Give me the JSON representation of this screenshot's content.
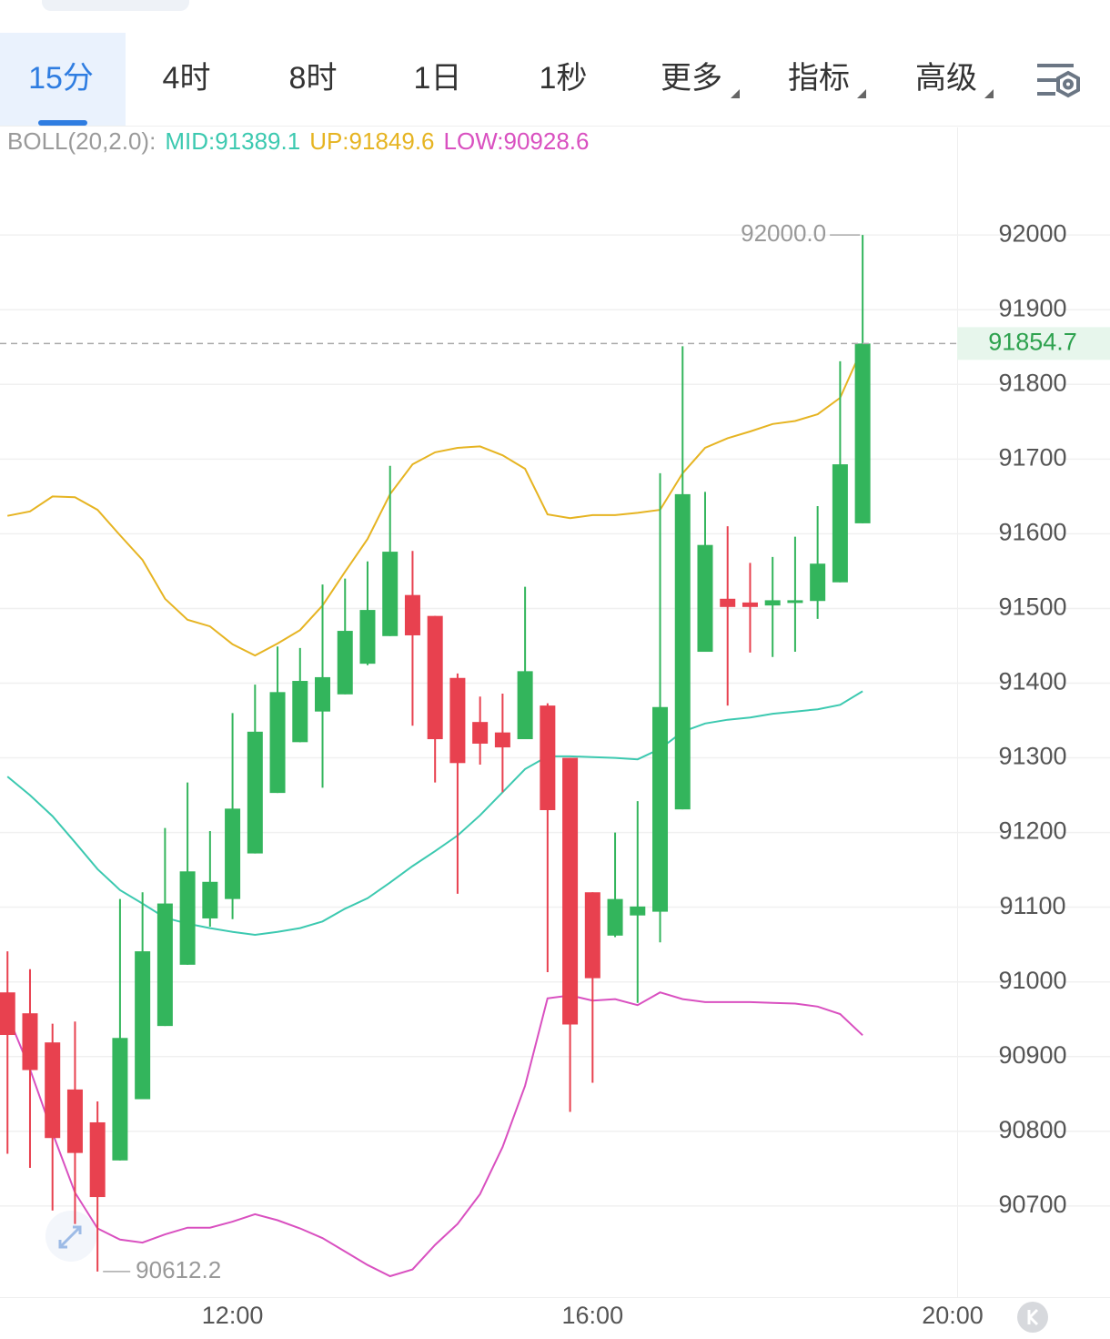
{
  "tabs": [
    "15分",
    "4时",
    "8时",
    "1日",
    "1秒",
    "更多",
    "指标",
    "高级"
  ],
  "active_tab": 0,
  "chart_data": {
    "type": "candlestick",
    "x": [
      "09:30",
      "09:45",
      "10:00",
      "10:15",
      "10:30",
      "10:45",
      "11:00",
      "11:15",
      "11:30",
      "11:45",
      "12:00",
      "12:15",
      "12:30",
      "12:45",
      "13:00",
      "13:15",
      "13:30",
      "13:45",
      "14:00",
      "14:15",
      "14:30",
      "14:45",
      "15:00",
      "15:15",
      "15:30",
      "15:45",
      "16:00",
      "16:15",
      "16:30",
      "16:45",
      "17:00",
      "17:15",
      "17:30",
      "17:45",
      "18:00",
      "18:15",
      "18:30",
      "18:45",
      "19:00"
    ],
    "open": [
      90986,
      90958,
      90919,
      90856,
      90812,
      90761,
      90843,
      90941,
      91023,
      91085,
      91111,
      91172,
      91253,
      91321,
      91362,
      91385,
      91426,
      91463,
      91518,
      91490,
      91407,
      91348,
      91334,
      91325,
      91370,
      91300,
      91120,
      91062,
      91089,
      91094,
      91231,
      91442,
      91513,
      91508,
      91504,
      91508,
      91510,
      91535,
      91614
    ],
    "high": [
      91041,
      91017,
      90944,
      90947,
      90840,
      91111,
      91120,
      91206,
      91267,
      91202,
      91360,
      91398,
      91449,
      91447,
      91532,
      91540,
      91563,
      91691,
      91577,
      91490,
      91413,
      91382,
      91386,
      91529,
      91373,
      91300,
      91120,
      91200,
      91242,
      91681,
      91851,
      91656,
      91610,
      91561,
      91569,
      91596,
      91637,
      91831,
      92000
    ],
    "low": [
      90770,
      90751,
      90694,
      90676,
      90612.2,
      90761,
      90843,
      90941,
      91023,
      91074,
      91084,
      91172,
      91253,
      91321,
      91260,
      91385,
      91424,
      91463,
      91343,
      91267,
      91118,
      91291,
      91254,
      91325,
      91013,
      90826,
      90865,
      91060,
      90972,
      91053,
      91231,
      91442,
      91370,
      91441,
      91435,
      91442,
      91486,
      91535,
      91614
    ],
    "close": [
      90929,
      90882,
      90791,
      90771,
      90712,
      90925,
      91041,
      91105,
      91148,
      91134,
      91232,
      91335,
      91388,
      91403,
      91408,
      91470,
      91498,
      91576,
      91464,
      91325,
      91293,
      91319,
      91314,
      91416,
      91230,
      90943,
      91005,
      91111,
      91101,
      91368,
      91653,
      91585,
      91502,
      91502,
      91511,
      91511,
      91560,
      91693,
      91854.7
    ],
    "up_color": "#33b55c",
    "down_color": "#e8414f",
    "xlim": [
      "09:25",
      "20:03"
    ],
    "xticks": [
      "12:00",
      "16:00",
      "20:00"
    ],
    "ylim": [
      90578,
      92144
    ],
    "yticks": [
      90700,
      90800,
      90900,
      91000,
      91100,
      91200,
      91300,
      91400,
      91500,
      91600,
      91700,
      91800,
      91900,
      92000
    ],
    "grid": true,
    "indicator": {
      "label": "BOLL(20,2.0):",
      "lines": [
        {
          "name": "MID:91389.1",
          "color": "#3cc9b0",
          "values": [
            91275,
            91250,
            91222,
            91187,
            91151,
            91123,
            91105,
            91086,
            91078,
            91072,
            91067,
            91063,
            91067,
            91072,
            91081,
            91098,
            91112,
            91133,
            91155,
            91175,
            91196,
            91223,
            91254,
            91285,
            91302,
            91302,
            91301,
            91300,
            91298,
            91312,
            91335,
            91346,
            91351,
            91354,
            91359,
            91362,
            91365,
            91371,
            91389.1
          ]
        },
        {
          "name": "UP:91849.6",
          "color": "#e6b422",
          "values": [
            91624,
            91630,
            91650,
            91649,
            91632,
            91598,
            91565,
            91513,
            91485,
            91476,
            91452,
            91437,
            91453,
            91471,
            91504,
            91549,
            91593,
            91653,
            91693,
            91709,
            91715,
            91717,
            91705,
            91687,
            91626,
            91621,
            91625,
            91625,
            91628,
            91632,
            91681,
            91715,
            91728,
            91737,
            91747,
            91751,
            91760,
            91782,
            91849.6
          ]
        },
        {
          "name": "LOW:90928.6",
          "color": "#d950c0",
          "values": [
            90956,
            90883,
            90798,
            90718,
            90670,
            90655,
            90651,
            90662,
            90671,
            90671,
            90679,
            90689,
            90681,
            90670,
            90657,
            90639,
            90621,
            90606,
            90615,
            90648,
            90676,
            90716,
            90779,
            90861,
            90978,
            90982,
            90975,
            90977,
            90969,
            90986,
            90977,
            90973,
            90973,
            90973,
            90972,
            90971,
            90967,
            90957,
            90928.6
          ]
        }
      ]
    },
    "annotations": [
      {
        "value": 92000,
        "label": "92000.0"
      },
      {
        "value": 90612.2,
        "label": "90612.2"
      }
    ],
    "last_price": 91854.7
  }
}
